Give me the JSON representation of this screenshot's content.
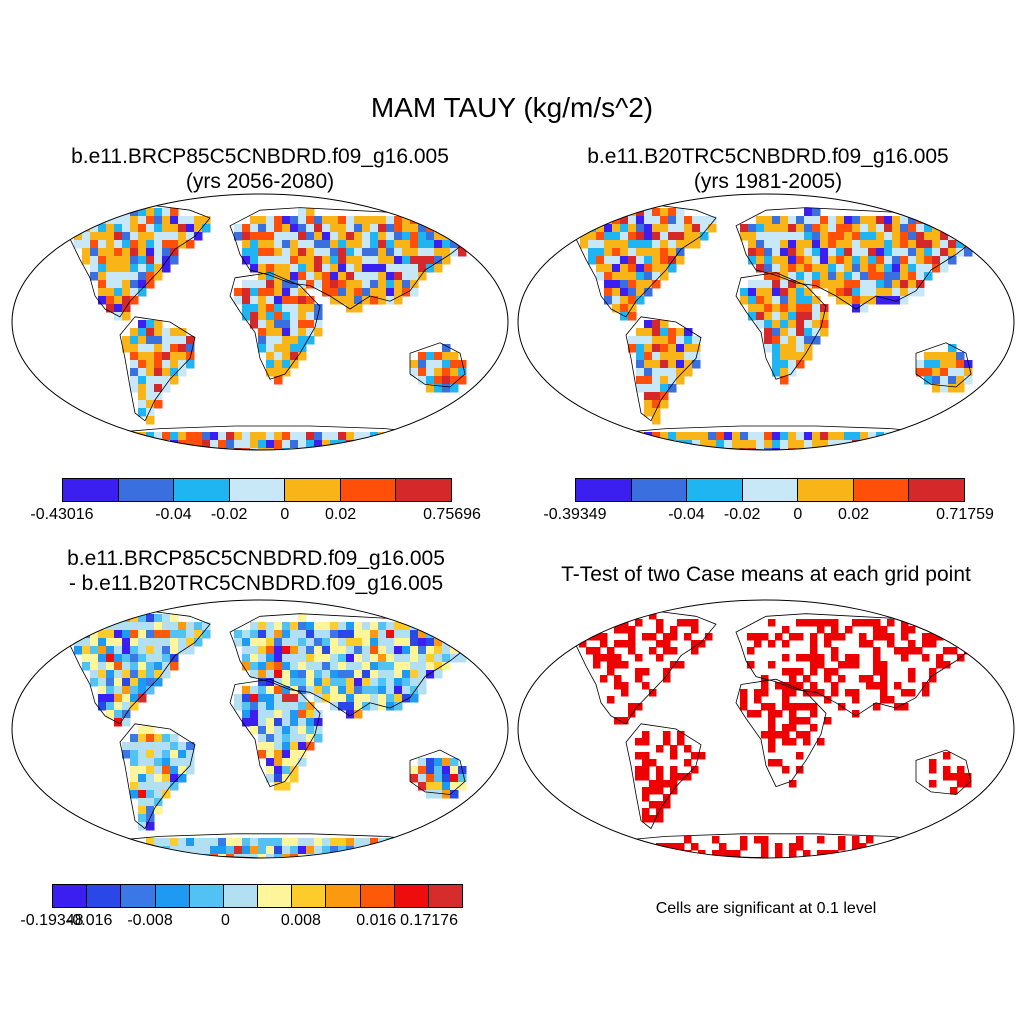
{
  "title": "MAM TAUY (kg/m/s^2)",
  "panels": [
    {
      "id": "future",
      "title_line1": "b.e11.BRCP85C5CNBDRD.f09_g16.005",
      "title_line2": "(yrs 2056-2080)",
      "colorbar": {
        "colors": [
          "#3a1ff0",
          "#3a6fe0",
          "#1fb4f2",
          "#c8e8f8",
          "#f9b417",
          "#ff4f08",
          "#d4282a"
        ],
        "labels": [
          "-0.43016",
          "-0.04",
          "-0.02",
          "0",
          "0.02",
          "0.75696"
        ]
      }
    },
    {
      "id": "historical",
      "title_line1": "b.e11.B20TRC5CNBDRD.f09_g16.005",
      "title_line2": "(yrs 1981-2005)",
      "colorbar": {
        "colors": [
          "#3a1ff0",
          "#3a6fe0",
          "#1fb4f2",
          "#c8e8f8",
          "#f9b417",
          "#ff4f08",
          "#d4282a"
        ],
        "labels": [
          "-0.39349",
          "-0.04",
          "-0.02",
          "0",
          "0.02",
          "0.71759"
        ]
      }
    },
    {
      "id": "difference",
      "title_line1": "b.e11.BRCP85C5CNBDRD.f09_g16.005",
      "title_line2": "- b.e11.B20TRC5CNBDRD.f09_g16.005",
      "colorbar": {
        "colors": [
          "#3a1ff0",
          "#2a48e8",
          "#3a78e8",
          "#1f9af2",
          "#52c2f4",
          "#b2dff2",
          "#fff59a",
          "#fdcc2a",
          "#fb9a10",
          "#fc5a08",
          "#ef0c0c",
          "#d62c2c"
        ],
        "labels": [
          "-0.19348",
          "-0.016",
          "-0.008",
          "0",
          "0.008",
          "0.016",
          "0.17176"
        ]
      }
    },
    {
      "id": "ttest",
      "title_line1": "T-Test of two Case means at each grid point",
      "note": "Cells are significant at 0.1 level",
      "significance_color": "#ee0000"
    }
  ]
}
